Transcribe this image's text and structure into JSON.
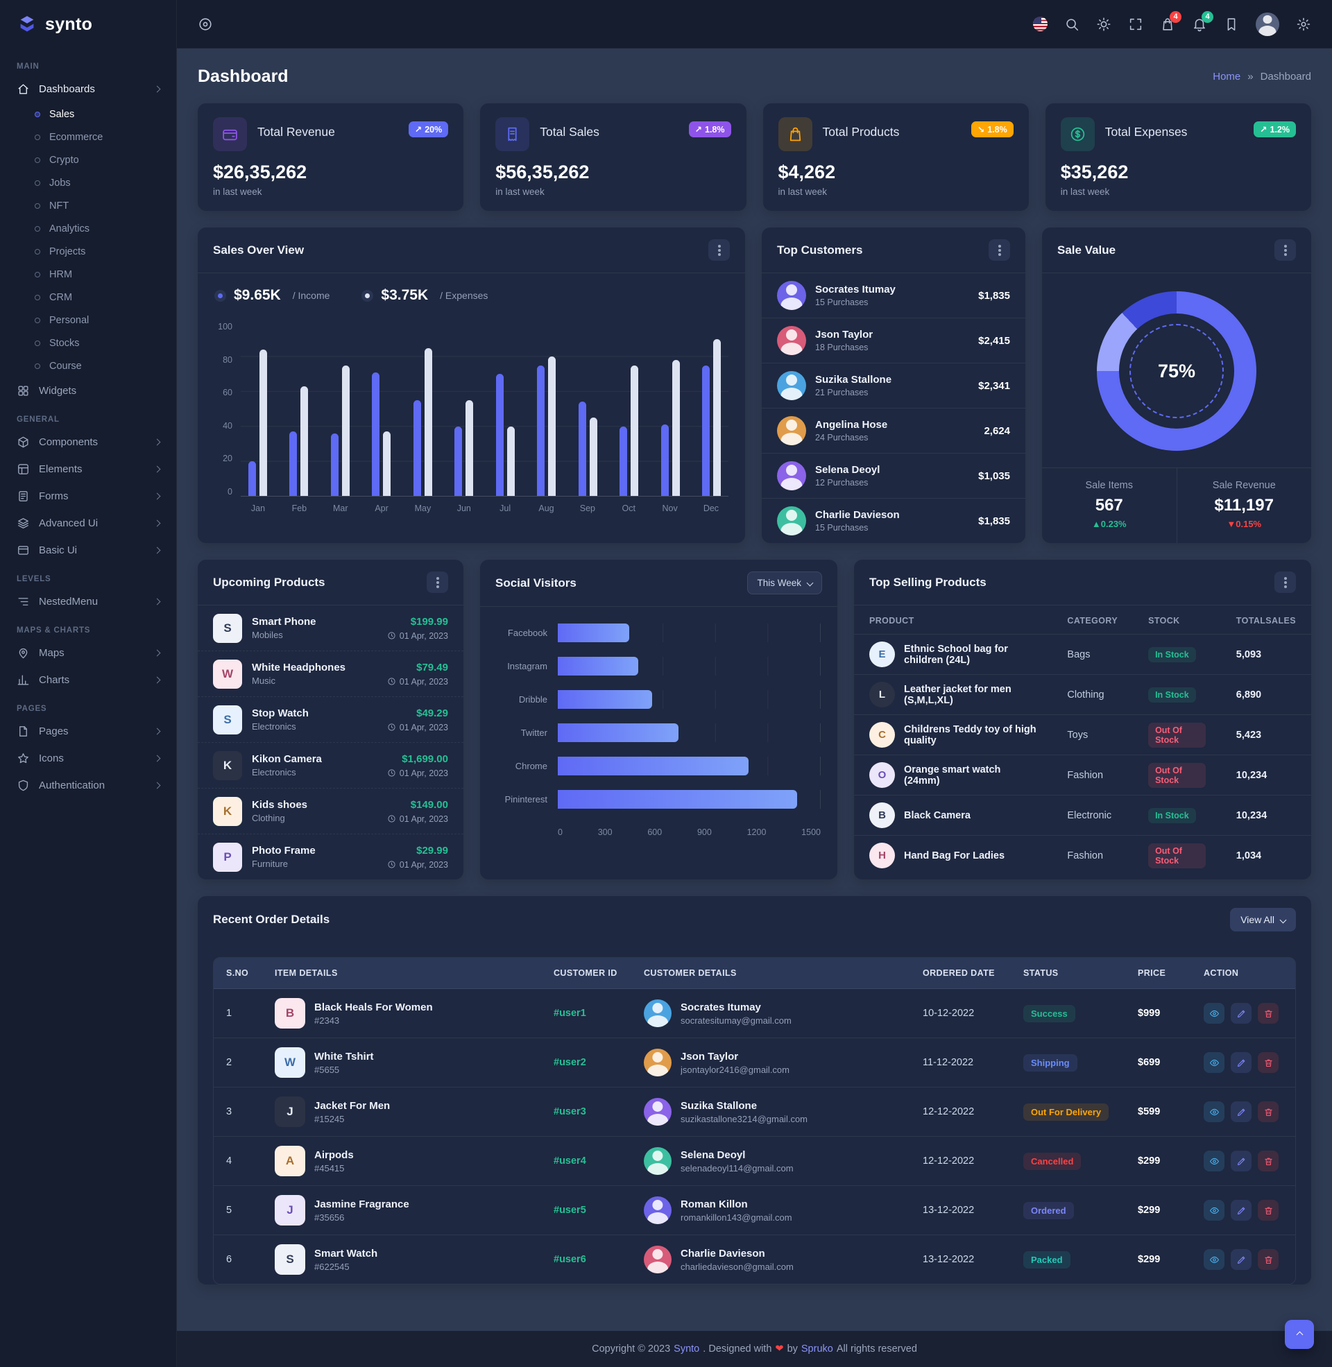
{
  "brand": {
    "name": "synto"
  },
  "header": {
    "cart_badge": "4",
    "notification_badge": "4"
  },
  "page": {
    "title": "Dashboard"
  },
  "breadcrumb": {
    "items": [
      "Home",
      "Dashboard"
    ],
    "separator": "»"
  },
  "sidebar": {
    "sections": [
      {
        "label": "MAIN",
        "items": [
          {
            "label": "Dashboards",
            "icon": "home-icon",
            "chevron": true,
            "expanded": true,
            "children": [
              {
                "label": "Sales",
                "active": true
              },
              {
                "label": "Ecommerce"
              },
              {
                "label": "Crypto"
              },
              {
                "label": "Jobs"
              },
              {
                "label": "NFT"
              },
              {
                "label": "Analytics"
              },
              {
                "label": "Projects"
              },
              {
                "label": "HRM"
              },
              {
                "label": "CRM"
              },
              {
                "label": "Personal"
              },
              {
                "label": "Stocks"
              },
              {
                "label": "Course"
              }
            ]
          },
          {
            "label": "Widgets",
            "icon": "widgets-icon"
          }
        ]
      },
      {
        "label": "GENERAL",
        "items": [
          {
            "label": "Components",
            "icon": "components-icon",
            "chevron": true
          },
          {
            "label": "Elements",
            "icon": "elements-icon",
            "chevron": true
          },
          {
            "label": "Forms",
            "icon": "forms-icon",
            "chevron": true
          },
          {
            "label": "Advanced Ui",
            "icon": "layers-icon",
            "chevron": true
          },
          {
            "label": "Basic Ui",
            "icon": "window-icon",
            "chevron": true
          }
        ]
      },
      {
        "label": "LEVELS",
        "items": [
          {
            "label": "NestedMenu",
            "icon": "list-icon",
            "chevron": true
          }
        ]
      },
      {
        "label": "MAPS & CHARTS",
        "items": [
          {
            "label": "Maps",
            "icon": "map-pin-icon",
            "chevron": true
          },
          {
            "label": "Charts",
            "icon": "chart-icon",
            "chevron": true
          }
        ]
      },
      {
        "label": "PAGES",
        "items": [
          {
            "label": "Pages",
            "icon": "file-icon",
            "chevron": true
          },
          {
            "label": "Icons",
            "icon": "star-icon",
            "chevron": true
          },
          {
            "label": "Authentication",
            "icon": "shield-icon",
            "chevron": true
          }
        ]
      }
    ]
  },
  "stats": [
    {
      "title": "Total Revenue",
      "value": "$26,35,262",
      "badge": "20%",
      "arrow": "↗",
      "note": "in last week",
      "color": "#8e54e9",
      "badge_color": "#5f6af5",
      "icon": "wallet-icon"
    },
    {
      "title": "Total Sales",
      "value": "$56,35,262",
      "badge": "1.8%",
      "arrow": "↗",
      "note": "in last week",
      "color": "#5f6af5",
      "badge_color": "#8e54e9",
      "icon": "receipt-icon"
    },
    {
      "title": "Total Products",
      "value": "$4,262",
      "badge": "1.8%",
      "arrow": "↘",
      "note": "in last week",
      "color": "#ffa505",
      "badge_color": "#ffa505",
      "icon": "bag-icon"
    },
    {
      "title": "Total Expenses",
      "value": "$35,262",
      "badge": "1.2%",
      "arrow": "↗",
      "note": "in last week",
      "color": "#26bf94",
      "badge_color": "#26bf94",
      "icon": "dollar-icon"
    }
  ],
  "chart_data": [
    {
      "type": "bar",
      "title": "Sales Over View",
      "categories": [
        "Jan",
        "Feb",
        "Mar",
        "Apr",
        "May",
        "Jun",
        "Jul",
        "Aug",
        "Sep",
        "Oct",
        "Nov",
        "Dec"
      ],
      "series": [
        {
          "name": "Income",
          "total_label": "$9.65K",
          "legend": "/ Income",
          "color": "#5f6af5",
          "values": [
            20,
            37,
            36,
            71,
            55,
            40,
            70,
            75,
            54,
            40,
            41,
            75
          ]
        },
        {
          "name": "Expenses",
          "total_label": "$3.75K",
          "legend": "/ Expenses",
          "color": "#dde3f1",
          "values": [
            84,
            63,
            75,
            37,
            85,
            55,
            40,
            80,
            45,
            75,
            78,
            90
          ]
        }
      ],
      "ylim": [
        0,
        100
      ],
      "yticks": [
        0,
        20,
        40,
        60,
        80,
        100
      ]
    },
    {
      "type": "bar",
      "orientation": "horizontal",
      "title": "Social Visitors",
      "filter": "This Week",
      "categories": [
        "Facebook",
        "Instagram",
        "Dribble",
        "Twitter",
        "Chrome",
        "Pininterest"
      ],
      "values": [
        410,
        460,
        540,
        690,
        1090,
        1370
      ],
      "xlim": [
        0,
        1500
      ],
      "xticks": [
        0,
        300,
        600,
        900,
        1200,
        1500
      ]
    },
    {
      "type": "donut",
      "title": "Sale Value",
      "label": "75%",
      "value": 75,
      "segments": [
        {
          "name": "primary",
          "value": 75,
          "color": "#5f6af5"
        },
        {
          "name": "light",
          "value": 13,
          "color": "#9aa5fb"
        },
        {
          "name": "dark",
          "value": 12,
          "color": "#3d49d8"
        }
      ]
    }
  ],
  "top_customers": {
    "title": "Top Customers",
    "items": [
      {
        "name": "Socrates Itumay",
        "purchases": "15 Purchases",
        "amount": "$1,835"
      },
      {
        "name": "Json Taylor",
        "purchases": "18 Purchases",
        "amount": "$2,415"
      },
      {
        "name": "Suzika Stallone",
        "purchases": "21 Purchases",
        "amount": "$2,341"
      },
      {
        "name": "Angelina Hose",
        "purchases": "24 Purchases",
        "amount": "2,624"
      },
      {
        "name": "Selena Deoyl",
        "purchases": "12 Purchases",
        "amount": "$1,035"
      },
      {
        "name": "Charlie Davieson",
        "purchases": "15 Purchases",
        "amount": "$1,835"
      }
    ]
  },
  "sale_value": {
    "title": "Sale Value",
    "percent": "75%",
    "items_label": "Sale Items",
    "items_value": "567",
    "items_change": "▲0.23%",
    "revenue_label": "Sale Revenue",
    "revenue_value": "$11,197",
    "revenue_change": "▼0.15%"
  },
  "upcoming_products": {
    "title": "Upcoming Products",
    "items": [
      {
        "name": "Smart Phone",
        "category": "Mobiles",
        "price": "$199.99",
        "date": "01 Apr, 2023"
      },
      {
        "name": "White Headphones",
        "category": "Music",
        "price": "$79.49",
        "date": "01 Apr, 2023"
      },
      {
        "name": "Stop Watch",
        "category": "Electronics",
        "price": "$49.29",
        "date": "01 Apr, 2023"
      },
      {
        "name": "Kikon Camera",
        "category": "Electronics",
        "price": "$1,699.00",
        "date": "01 Apr, 2023"
      },
      {
        "name": "Kids shoes",
        "category": "Clothing",
        "price": "$149.00",
        "date": "01 Apr, 2023"
      },
      {
        "name": "Photo Frame",
        "category": "Furniture",
        "price": "$29.99",
        "date": "01 Apr, 2023"
      }
    ]
  },
  "top_selling": {
    "title": "Top Selling Products",
    "columns": [
      "PRODUCT",
      "CATEGORY",
      "STOCK",
      "TOTALSALES"
    ],
    "rows": [
      {
        "product": "Ethnic School bag for children (24L)",
        "category": "Bags",
        "stock": "In Stock",
        "stock_ok": true,
        "sales": "5,093"
      },
      {
        "product": "Leather jacket for men (S,M,L,XL)",
        "category": "Clothing",
        "stock": "In Stock",
        "stock_ok": true,
        "sales": "6,890"
      },
      {
        "product": "Childrens Teddy toy of high quality",
        "category": "Toys",
        "stock": "Out Of Stock",
        "stock_ok": false,
        "sales": "5,423"
      },
      {
        "product": "Orange smart watch (24mm)",
        "category": "Fashion",
        "stock": "Out Of Stock",
        "stock_ok": false,
        "sales": "10,234"
      },
      {
        "product": "Black Camera",
        "category": "Electronic",
        "stock": "In Stock",
        "stock_ok": true,
        "sales": "10,234"
      },
      {
        "product": "Hand Bag For Ladies",
        "category": "Fashion",
        "stock": "Out Of Stock",
        "stock_ok": false,
        "sales": "1,034"
      }
    ]
  },
  "orders": {
    "title": "Recent Order Details",
    "view_all": "View All",
    "columns": [
      "S.NO",
      "ITEM DETAILS",
      "CUSTOMER ID",
      "CUSTOMER DETAILS",
      "ORDERED DATE",
      "STATUS",
      "PRICE",
      "ACTION"
    ],
    "rows": [
      {
        "sno": "1",
        "item": "Black Heals For Women",
        "item_id": "#2343",
        "customer_id": "#user1",
        "customer": "Socrates Itumay",
        "email": "socratesitumay@gmail.com",
        "date": "10-12-2022",
        "status": "Success",
        "status_color": "success",
        "price": "$999"
      },
      {
        "sno": "2",
        "item": "White Tshirt",
        "item_id": "#5655",
        "customer_id": "#user2",
        "customer": "Json Taylor",
        "email": "jsontaylor2416@gmail.com",
        "date": "11-12-2022",
        "status": "Shipping",
        "status_color": "info",
        "price": "$699"
      },
      {
        "sno": "3",
        "item": "Jacket For Men",
        "item_id": "#15245",
        "customer_id": "#user3",
        "customer": "Suzika Stallone",
        "email": "suzikastallone3214@gmail.com",
        "date": "12-12-2022",
        "status": "Out For Delivery",
        "status_color": "warning",
        "price": "$599"
      },
      {
        "sno": "4",
        "item": "Airpods",
        "item_id": "#45415",
        "customer_id": "#user4",
        "customer": "Selena Deoyl",
        "email": "selenadeoyl114@gmail.com",
        "date": "12-12-2022",
        "status": "Cancelled",
        "status_color": "danger",
        "price": "$299"
      },
      {
        "sno": "5",
        "item": "Jasmine Fragrance",
        "item_id": "#35656",
        "customer_id": "#user5",
        "customer": "Roman Killon",
        "email": "romankillon143@gmail.com",
        "date": "13-12-2022",
        "status": "Ordered",
        "status_color": "primary",
        "price": "$299"
      },
      {
        "sno": "6",
        "item": "Smart Watch",
        "item_id": "#622545",
        "customer_id": "#user6",
        "customer": "Charlie Davieson",
        "email": "charliedavieson@gmail.com",
        "date": "13-12-2022",
        "status": "Packed",
        "status_color": "teal",
        "price": "$299"
      }
    ]
  },
  "status_colors": {
    "success": "#26bf94",
    "info": "#6a8cf7",
    "warning": "#ffa505",
    "danger": "#fb4242",
    "primary": "#7c86f8",
    "teal": "#22c9b7"
  },
  "footer": {
    "pre": "Copyright © 2023",
    "brand": "Synto",
    "mid": ". Designed with",
    "heart": "❤",
    "by": "by",
    "designer": "Spruko",
    "post": "All rights reserved"
  }
}
